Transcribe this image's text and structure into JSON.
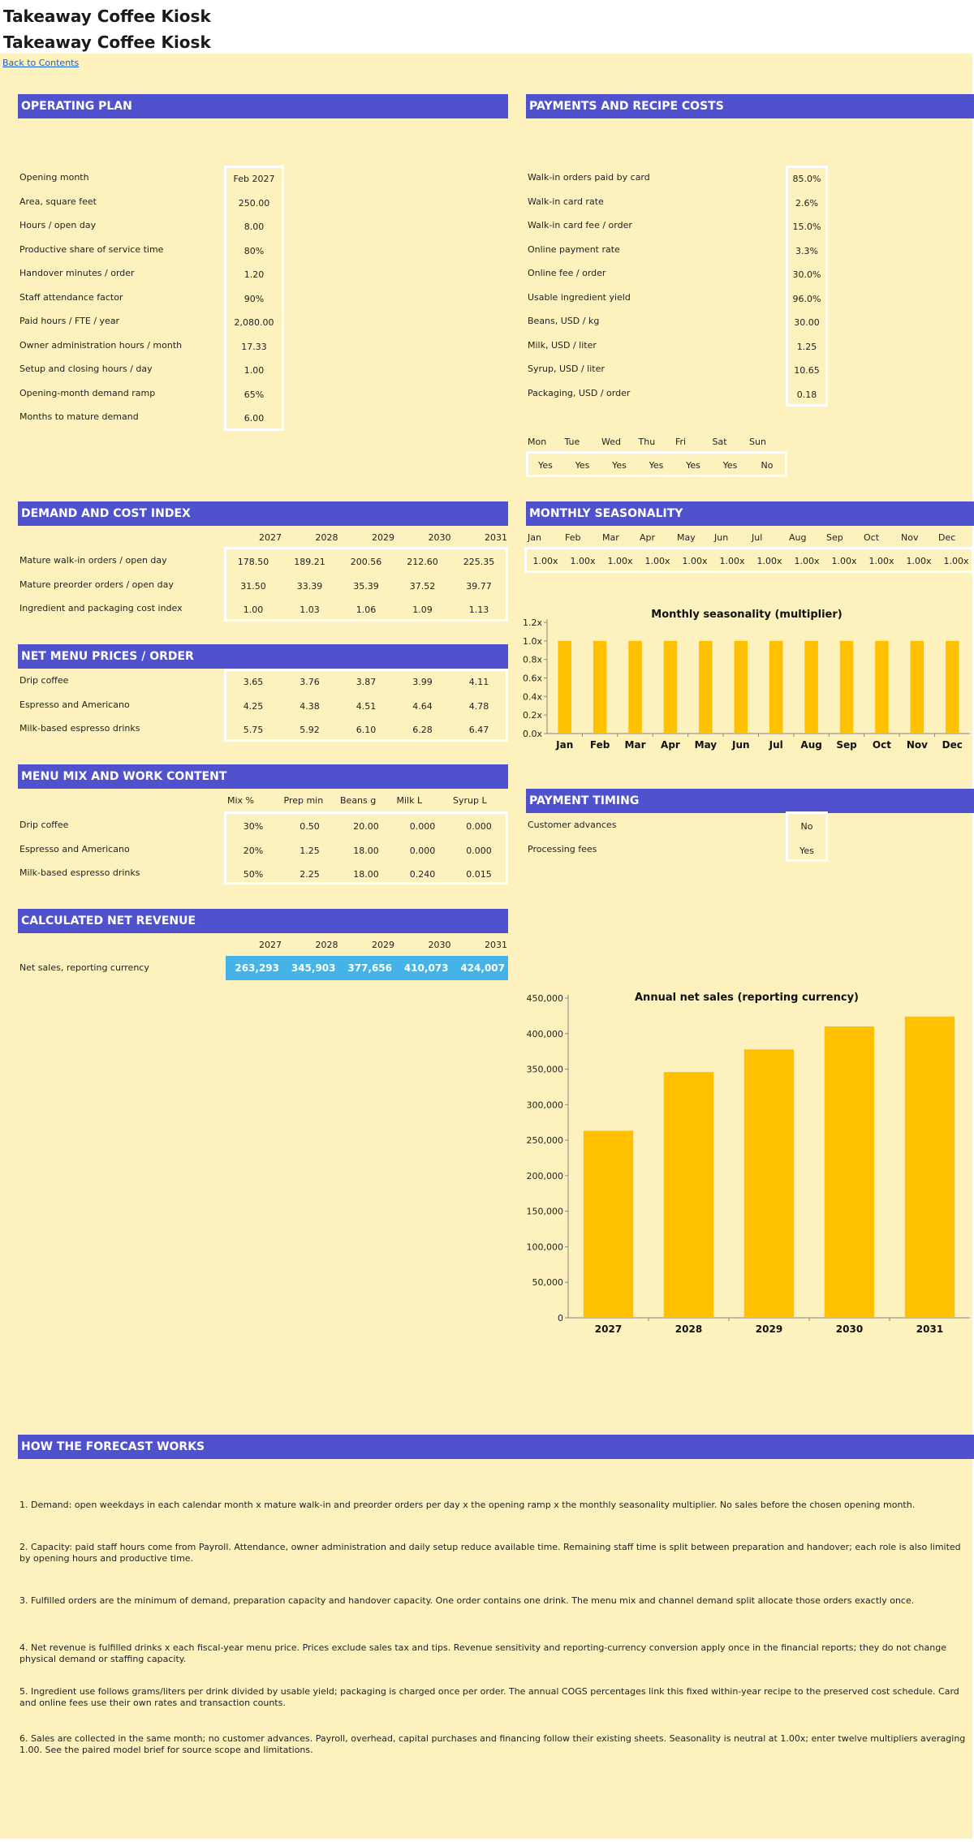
{
  "page": {
    "title_top": "Takeaway Coffee Kiosk",
    "title_second": "Takeaway Coffee Kiosk",
    "back_link": "Back to Contents"
  },
  "operating_plan": {
    "header": "OPERATING PLAN",
    "rows": [
      {
        "label": "Opening month",
        "value": "Feb 2027"
      },
      {
        "label": "Area, square feet",
        "value": "250.00"
      },
      {
        "label": "Hours / open day",
        "value": "8.00"
      },
      {
        "label": "Productive share of service time",
        "value": "80%"
      },
      {
        "label": "Handover minutes / order",
        "value": "1.20"
      },
      {
        "label": "Staff attendance factor",
        "value": "90%"
      },
      {
        "label": "Paid hours / FTE / year",
        "value": "2,080.00"
      },
      {
        "label": "Owner administration hours / month",
        "value": "17.33"
      },
      {
        "label": "Setup and closing hours / day",
        "value": "1.00"
      },
      {
        "label": "Opening-month demand ramp",
        "value": "65%"
      },
      {
        "label": "Months to mature demand",
        "value": "6.00"
      }
    ]
  },
  "payments": {
    "header": "PAYMENTS AND RECIPE COSTS",
    "rows": [
      {
        "label": "Walk-in orders paid by card",
        "value": "85.0%"
      },
      {
        "label": "Walk-in card rate",
        "value": "2.6%"
      },
      {
        "label": "Walk-in card fee / order",
        "value": "15.0%"
      },
      {
        "label": "Online payment rate",
        "value": "3.3%"
      },
      {
        "label": "Online fee / order",
        "value": "30.0%"
      },
      {
        "label": "Usable ingredient yield",
        "value": "96.0%"
      },
      {
        "label": "Beans, USD / kg",
        "value": "30.00"
      },
      {
        "label": "Milk, USD / liter",
        "value": "1.25"
      },
      {
        "label": "Syrup, USD / liter",
        "value": "10.65"
      },
      {
        "label": "Packaging, USD / order",
        "value": "0.18"
      }
    ],
    "weekdays": [
      "Mon",
      "Tue",
      "Wed",
      "Thu",
      "Fri",
      "Sat",
      "Sun"
    ],
    "weekday_open": [
      "Yes",
      "Yes",
      "Yes",
      "Yes",
      "Yes",
      "Yes",
      "No"
    ]
  },
  "demand": {
    "header": "DEMAND AND COST INDEX",
    "years": [
      "2027",
      "2028",
      "2029",
      "2030",
      "2031"
    ],
    "rows": [
      {
        "label": "Mature walk-in orders / open day",
        "values": [
          "178.50",
          "189.21",
          "200.56",
          "212.60",
          "225.35"
        ]
      },
      {
        "label": "Mature preorder orders / open day",
        "values": [
          "31.50",
          "33.39",
          "35.39",
          "37.52",
          "39.77"
        ]
      },
      {
        "label": "Ingredient and packaging cost index",
        "values": [
          "1.00",
          "1.03",
          "1.06",
          "1.09",
          "1.13"
        ]
      }
    ]
  },
  "seasonality": {
    "header": "MONTHLY SEASONALITY",
    "months": [
      "Jan",
      "Feb",
      "Mar",
      "Apr",
      "May",
      "Jun",
      "Jul",
      "Aug",
      "Sep",
      "Oct",
      "Nov",
      "Dec"
    ],
    "values": [
      "1.00x",
      "1.00x",
      "1.00x",
      "1.00x",
      "1.00x",
      "1.00x",
      "1.00x",
      "1.00x",
      "1.00x",
      "1.00x",
      "1.00x",
      "1.00x"
    ]
  },
  "net_menu": {
    "header": "NET MENU PRICES / ORDER",
    "rows": [
      {
        "label": "Drip coffee",
        "values": [
          "3.65",
          "3.76",
          "3.87",
          "3.99",
          "4.11"
        ]
      },
      {
        "label": "Espresso and Americano",
        "values": [
          "4.25",
          "4.38",
          "4.51",
          "4.64",
          "4.78"
        ]
      },
      {
        "label": "Milk-based espresso drinks",
        "values": [
          "5.75",
          "5.92",
          "6.10",
          "6.28",
          "6.47"
        ]
      }
    ]
  },
  "menu_mix": {
    "header": "MENU MIX AND WORK CONTENT",
    "columns": [
      "Mix %",
      "Prep min",
      "Beans g",
      "Milk L",
      "Syrup L"
    ],
    "rows": [
      {
        "label": "Drip coffee",
        "values": [
          "30%",
          "0.50",
          "20.00",
          "0.000",
          "0.000"
        ]
      },
      {
        "label": "Espresso and Americano",
        "values": [
          "20%",
          "1.25",
          "18.00",
          "0.000",
          "0.000"
        ]
      },
      {
        "label": "Milk-based espresso drinks",
        "values": [
          "50%",
          "2.25",
          "18.00",
          "0.240",
          "0.015"
        ]
      }
    ]
  },
  "payment_timing": {
    "header": "PAYMENT TIMING",
    "rows": [
      {
        "label": "Customer advances",
        "value": "No"
      },
      {
        "label": "Processing fees",
        "value": "Yes"
      }
    ]
  },
  "net_revenue": {
    "header": "CALCULATED NET REVENUE",
    "years": [
      "2027",
      "2028",
      "2029",
      "2030",
      "2031"
    ],
    "label": "Net sales, reporting currency",
    "values": [
      "263,293",
      "345,903",
      "377,656",
      "410,073",
      "424,007"
    ]
  },
  "forecast": {
    "header": "HOW THE FORECAST WORKS",
    "paragraphs": [
      "1. Demand: open weekdays in each calendar month x mature walk-in and preorder orders per day x the opening ramp x the monthly seasonality multiplier. No sales before the chosen opening month.",
      "2. Capacity: paid staff hours come from Payroll. Attendance, owner administration and daily setup reduce available time. Remaining staff time is split between preparation and handover; each role is also limited by opening hours and productive time.",
      "3. Fulfilled orders are the minimum of demand, preparation capacity and handover capacity. One order contains one drink. The menu mix and channel demand split allocate those orders exactly once.",
      "4. Net revenue is fulfilled drinks x each fiscal-year menu price. Prices exclude sales tax and tips. Revenue sensitivity and reporting-currency conversion apply once in the financial reports; they do not change physical demand or staffing capacity.",
      "5. Ingredient use follows grams/liters per drink divided by usable yield; packaging is charged once per order. The annual COGS percentages link this fixed within-year recipe to the preserved cost schedule. Card and online fees use their own rates and transaction counts.",
      "6. Sales are collected in the same month; no customer advances. Payroll, overhead, capital purchases and financing follow their existing sheets. Seasonality is neutral at 1.00x; enter twelve multipliers averaging 1.00. See the paired model brief for source scope and limitations."
    ]
  },
  "colors": {
    "header_bg": "#4f52cc",
    "sheet_bg": "#fdf2bd",
    "bar": "#ffc000",
    "revenue_bar": "#44b3e8"
  },
  "chart_data": [
    {
      "type": "bar",
      "title": "Monthly seasonality (multiplier)",
      "categories": [
        "Jan",
        "Feb",
        "Mar",
        "Apr",
        "May",
        "Jun",
        "Jul",
        "Aug",
        "Sep",
        "Oct",
        "Nov",
        "Dec"
      ],
      "values": [
        1.0,
        1.0,
        1.0,
        1.0,
        1.0,
        1.0,
        1.0,
        1.0,
        1.0,
        1.0,
        1.0,
        1.0
      ],
      "ylim": [
        0,
        1.2
      ],
      "yticks": [
        "0.0x",
        "0.2x",
        "0.4x",
        "0.6x",
        "0.8x",
        "1.0x",
        "1.2x"
      ],
      "grid": false,
      "color": "#ffc000"
    },
    {
      "type": "bar",
      "title": "Annual net sales (reporting currency)",
      "categories": [
        "2027",
        "2028",
        "2029",
        "2030",
        "2031"
      ],
      "values": [
        263293,
        345903,
        377656,
        410073,
        424007
      ],
      "ylim": [
        0,
        450000
      ],
      "yticks": [
        "0",
        "50,000",
        "100,000",
        "150,000",
        "200,000",
        "250,000",
        "300,000",
        "350,000",
        "400,000",
        "450,000"
      ],
      "grid": false,
      "color": "#ffc000"
    }
  ]
}
